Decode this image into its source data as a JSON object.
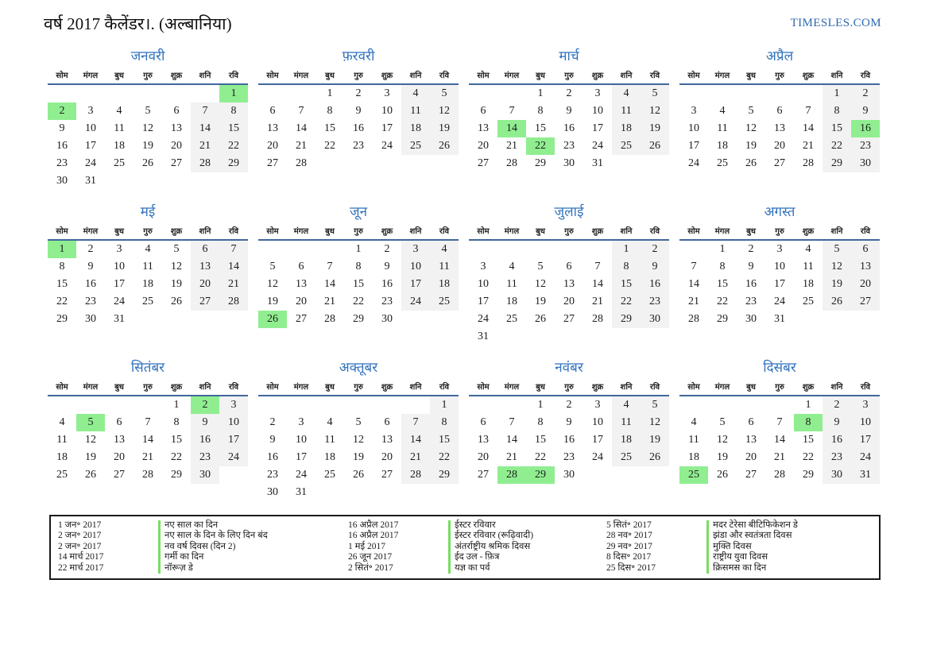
{
  "page": {
    "title": "वर्ष 2017 कैलेंडर।. (अल्बानिया)",
    "site": "TIMESLES.COM"
  },
  "colors": {
    "accent_blue": "#3273be",
    "header_rule_blue": "#40689b",
    "holiday_green": "#90ee90",
    "weekend_gray": "#f2f2f2",
    "legend_marker_green": "#76de60"
  },
  "weekdays": [
    "सोम",
    "मंगल",
    "बुध",
    "गुरु",
    "शुक्र",
    "शनि",
    "रवि"
  ],
  "months": [
    {
      "name": "जनवरी",
      "holidays": [
        1,
        2
      ],
      "rows": [
        [
          "",
          "",
          "",
          "",
          "",
          "",
          "1"
        ],
        [
          "2",
          "3",
          "4",
          "5",
          "6",
          "7",
          "8"
        ],
        [
          "9",
          "10",
          "11",
          "12",
          "13",
          "14",
          "15"
        ],
        [
          "16",
          "17",
          "18",
          "19",
          "20",
          "21",
          "22"
        ],
        [
          "23",
          "24",
          "25",
          "26",
          "27",
          "28",
          "29"
        ],
        [
          "30",
          "31",
          "",
          "",
          "",
          "",
          ""
        ]
      ]
    },
    {
      "name": "फ़रवरी",
      "holidays": [],
      "rows": [
        [
          "",
          "",
          "1",
          "2",
          "3",
          "4",
          "5"
        ],
        [
          "6",
          "7",
          "8",
          "9",
          "10",
          "11",
          "12"
        ],
        [
          "13",
          "14",
          "15",
          "16",
          "17",
          "18",
          "19"
        ],
        [
          "20",
          "21",
          "22",
          "23",
          "24",
          "25",
          "26"
        ],
        [
          "27",
          "28",
          "",
          "",
          "",
          "",
          ""
        ]
      ]
    },
    {
      "name": "मार्च",
      "holidays": [
        14,
        22
      ],
      "rows": [
        [
          "",
          "",
          "1",
          "2",
          "3",
          "4",
          "5"
        ],
        [
          "6",
          "7",
          "8",
          "9",
          "10",
          "11",
          "12"
        ],
        [
          "13",
          "14",
          "15",
          "16",
          "17",
          "18",
          "19"
        ],
        [
          "20",
          "21",
          "22",
          "23",
          "24",
          "25",
          "26"
        ],
        [
          "27",
          "28",
          "29",
          "30",
          "31",
          "",
          ""
        ]
      ]
    },
    {
      "name": "अप्रैल",
      "holidays": [
        16
      ],
      "rows": [
        [
          "",
          "",
          "",
          "",
          "",
          "1",
          "2"
        ],
        [
          "3",
          "4",
          "5",
          "6",
          "7",
          "8",
          "9"
        ],
        [
          "10",
          "11",
          "12",
          "13",
          "14",
          "15",
          "16"
        ],
        [
          "17",
          "18",
          "19",
          "20",
          "21",
          "22",
          "23"
        ],
        [
          "24",
          "25",
          "26",
          "27",
          "28",
          "29",
          "30"
        ]
      ]
    },
    {
      "name": "मई",
      "holidays": [
        1
      ],
      "rows": [
        [
          "1",
          "2",
          "3",
          "4",
          "5",
          "6",
          "7"
        ],
        [
          "8",
          "9",
          "10",
          "11",
          "12",
          "13",
          "14"
        ],
        [
          "15",
          "16",
          "17",
          "18",
          "19",
          "20",
          "21"
        ],
        [
          "22",
          "23",
          "24",
          "25",
          "26",
          "27",
          "28"
        ],
        [
          "29",
          "30",
          "31",
          "",
          "",
          "",
          ""
        ]
      ]
    },
    {
      "name": "जून",
      "holidays": [
        26
      ],
      "rows": [
        [
          "",
          "",
          "",
          "1",
          "2",
          "3",
          "4"
        ],
        [
          "5",
          "6",
          "7",
          "8",
          "9",
          "10",
          "11"
        ],
        [
          "12",
          "13",
          "14",
          "15",
          "16",
          "17",
          "18"
        ],
        [
          "19",
          "20",
          "21",
          "22",
          "23",
          "24",
          "25"
        ],
        [
          "26",
          "27",
          "28",
          "29",
          "30",
          "",
          ""
        ]
      ]
    },
    {
      "name": "जुलाई",
      "holidays": [],
      "rows": [
        [
          "",
          "",
          "",
          "",
          "",
          "1",
          "2"
        ],
        [
          "3",
          "4",
          "5",
          "6",
          "7",
          "8",
          "9"
        ],
        [
          "10",
          "11",
          "12",
          "13",
          "14",
          "15",
          "16"
        ],
        [
          "17",
          "18",
          "19",
          "20",
          "21",
          "22",
          "23"
        ],
        [
          "24",
          "25",
          "26",
          "27",
          "28",
          "29",
          "30"
        ],
        [
          "31",
          "",
          "",
          "",
          "",
          "",
          ""
        ]
      ]
    },
    {
      "name": "अगस्त",
      "holidays": [],
      "rows": [
        [
          "",
          "1",
          "2",
          "3",
          "4",
          "5",
          "6"
        ],
        [
          "7",
          "8",
          "9",
          "10",
          "11",
          "12",
          "13"
        ],
        [
          "14",
          "15",
          "16",
          "17",
          "18",
          "19",
          "20"
        ],
        [
          "21",
          "22",
          "23",
          "24",
          "25",
          "26",
          "27"
        ],
        [
          "28",
          "29",
          "30",
          "31",
          "",
          "",
          ""
        ]
      ]
    },
    {
      "name": "सितंबर",
      "holidays": [
        2,
        5
      ],
      "rows": [
        [
          "",
          "",
          "",
          "",
          "1",
          "2",
          "3"
        ],
        [
          "4",
          "5",
          "6",
          "7",
          "8",
          "9",
          "10"
        ],
        [
          "11",
          "12",
          "13",
          "14",
          "15",
          "16",
          "17"
        ],
        [
          "18",
          "19",
          "20",
          "21",
          "22",
          "23",
          "24"
        ],
        [
          "25",
          "26",
          "27",
          "28",
          "29",
          "30",
          ""
        ]
      ]
    },
    {
      "name": "अक्तूबर",
      "holidays": [],
      "rows": [
        [
          "",
          "",
          "",
          "",
          "",
          "",
          "1"
        ],
        [
          "2",
          "3",
          "4",
          "5",
          "6",
          "7",
          "8"
        ],
        [
          "9",
          "10",
          "11",
          "12",
          "13",
          "14",
          "15"
        ],
        [
          "16",
          "17",
          "18",
          "19",
          "20",
          "21",
          "22"
        ],
        [
          "23",
          "24",
          "25",
          "26",
          "27",
          "28",
          "29"
        ],
        [
          "30",
          "31",
          "",
          "",
          "",
          "",
          ""
        ]
      ]
    },
    {
      "name": "नवंबर",
      "holidays": [
        28,
        29
      ],
      "rows": [
        [
          "",
          "",
          "1",
          "2",
          "3",
          "4",
          "5"
        ],
        [
          "6",
          "7",
          "8",
          "9",
          "10",
          "11",
          "12"
        ],
        [
          "13",
          "14",
          "15",
          "16",
          "17",
          "18",
          "19"
        ],
        [
          "20",
          "21",
          "22",
          "23",
          "24",
          "25",
          "26"
        ],
        [
          "27",
          "28",
          "29",
          "30",
          "",
          "",
          ""
        ]
      ]
    },
    {
      "name": "दिसंबर",
      "holidays": [
        8,
        25
      ],
      "rows": [
        [
          "",
          "",
          "",
          "",
          "1",
          "2",
          "3"
        ],
        [
          "4",
          "5",
          "6",
          "7",
          "8",
          "9",
          "10"
        ],
        [
          "11",
          "12",
          "13",
          "14",
          "15",
          "16",
          "17"
        ],
        [
          "18",
          "19",
          "20",
          "21",
          "22",
          "23",
          "24"
        ],
        [
          "25",
          "26",
          "27",
          "28",
          "29",
          "30",
          "31"
        ]
      ]
    }
  ],
  "legend": {
    "columns": [
      [
        {
          "date": "1 जन॰ 2017",
          "name": "नए साल का दिन"
        },
        {
          "date": "2 जन॰ 2017",
          "name": "नए साल के दिन के लिए दिन बंद"
        },
        {
          "date": "2 जन॰ 2017",
          "name": "नव वर्ष दिवस (दिन 2)"
        },
        {
          "date": "14 मार्च 2017",
          "name": "गर्मी का दिन"
        },
        {
          "date": "22 मार्च 2017",
          "name": "नॉरूज़ डे"
        }
      ],
      [
        {
          "date": "16 अप्रैल 2017",
          "name": "ईस्टर रविवार"
        },
        {
          "date": "16 अप्रैल 2017",
          "name": "ईस्टर रविवार (रूढ़िवादी)"
        },
        {
          "date": "1 मई 2017",
          "name": "अंतर्राष्ट्रीय श्रमिक दिवस"
        },
        {
          "date": "26 जून 2017",
          "name": "ईद उल - फ़ित्र"
        },
        {
          "date": "2 सितं॰ 2017",
          "name": "यज्ञ का पर्व"
        }
      ],
      [
        {
          "date": "5 सितं॰ 2017",
          "name": "मदर टेरेसा बीटिफिकेशन डे"
        },
        {
          "date": "28 नव॰ 2017",
          "name": "झंडा और स्वतंत्रता दिवस"
        },
        {
          "date": "29 नव॰ 2017",
          "name": "मुक्ति दिवस"
        },
        {
          "date": "8 दिस॰ 2017",
          "name": "राष्ट्रीय युवा दिवस"
        },
        {
          "date": "25 दिस॰ 2017",
          "name": "क्रिसमस का दिन"
        }
      ]
    ]
  }
}
